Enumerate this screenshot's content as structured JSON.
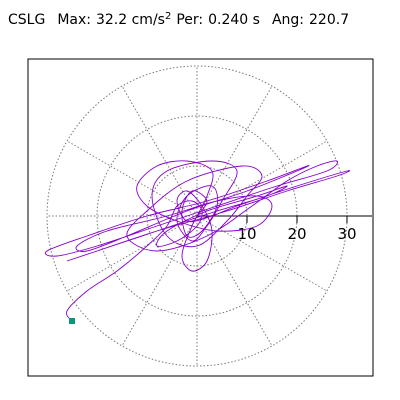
{
  "header": {
    "station": "CSLG",
    "max_label": "Max:",
    "max_value": "32.2 cm/s",
    "max_exponent": "2",
    "per_label": "Per:",
    "per_value": "0.240 s",
    "ang_label": "Ang:",
    "ang_value": "220.7"
  },
  "chart_data": {
    "type": "polar_orbit",
    "title": "",
    "max_amplitude": 32.2,
    "unit": "cm/s2",
    "period_s": 0.24,
    "angle_deg": 220.7,
    "radial_range": [
      0,
      35
    ],
    "radial_ticks": [
      10,
      20,
      30
    ],
    "radial_tick_labels": [
      "10",
      "20",
      "30"
    ],
    "grid": "dotted concentric rings with 30-degree spokes",
    "series": [
      {
        "color": "#8800cc",
        "end_marker_color": "#009977",
        "points": [
          [
            0,
            0
          ],
          [
            2,
            3
          ],
          [
            -1,
            5
          ],
          [
            -3,
            1
          ],
          [
            -2,
            -4
          ],
          [
            1,
            -3
          ],
          [
            4,
            2
          ],
          [
            3,
            6
          ],
          [
            -2,
            4
          ],
          [
            -4,
            -1
          ],
          [
            -1,
            -5
          ],
          [
            2,
            -2
          ],
          [
            5,
            3
          ],
          [
            8,
            9
          ],
          [
            3,
            11
          ],
          [
            -6,
            9
          ],
          [
            -9,
            4
          ],
          [
            -6,
            -4
          ],
          [
            0,
            -6
          ],
          [
            6,
            -1
          ],
          [
            10,
            4
          ],
          [
            13,
            8
          ],
          [
            9,
            10
          ],
          [
            -2,
            7
          ],
          [
            -10,
            1
          ],
          [
            -14,
            -4
          ],
          [
            -8,
            -7
          ],
          [
            2,
            -4
          ],
          [
            11,
            2
          ],
          [
            18,
            7
          ],
          [
            24,
            10
          ],
          [
            28,
            11
          ],
          [
            26,
            9
          ],
          [
            16,
            6
          ],
          [
            4,
            2
          ],
          [
            -8,
            -2
          ],
          [
            -20,
            -6
          ],
          [
            -28,
            -8
          ],
          [
            -30,
            -7
          ],
          [
            -22,
            -4
          ],
          [
            -10,
            0
          ],
          [
            2,
            3
          ],
          [
            14,
            7
          ],
          [
            22,
            10
          ],
          [
            20,
            9
          ],
          [
            10,
            5
          ],
          [
            -2,
            1
          ],
          [
            -14,
            -4
          ],
          [
            -22,
            -7
          ],
          [
            -24,
            -6
          ],
          [
            -18,
            -3
          ],
          [
            -6,
            0
          ],
          [
            4,
            3
          ],
          [
            12,
            4
          ],
          [
            15,
            2
          ],
          [
            12,
            -2
          ],
          [
            4,
            -3
          ],
          [
            -4,
            -1
          ],
          [
            -10,
            2
          ],
          [
            -12,
            6
          ],
          [
            -8,
            10
          ],
          [
            -2,
            11
          ],
          [
            3,
            9
          ],
          [
            2,
            4
          ],
          [
            -1,
            -2
          ],
          [
            -3,
            -8
          ],
          [
            -1,
            -11
          ],
          [
            2,
            -9
          ],
          [
            3,
            -3
          ],
          [
            1,
            2
          ],
          [
            -2,
            5
          ],
          [
            -4,
            3
          ],
          [
            -2,
            -1
          ],
          [
            3,
            0
          ],
          [
            8,
            2
          ],
          [
            20,
            6
          ],
          [
            30,
            9
          ],
          [
            28,
            8
          ],
          [
            18,
            5
          ],
          [
            6,
            1
          ],
          [
            -8,
            -3
          ],
          [
            -20,
            -7
          ],
          [
            -26,
            -9
          ],
          [
            -20,
            -7
          ],
          [
            -8,
            -3
          ],
          [
            4,
            1
          ],
          [
            14,
            4
          ],
          [
            18,
            6
          ],
          [
            12,
            4
          ],
          [
            2,
            1
          ],
          [
            -6,
            -3
          ],
          [
            -8,
            -6
          ],
          [
            -4,
            -5
          ],
          [
            0,
            -2
          ],
          [
            1,
            1
          ],
          [
            -1,
            3
          ],
          [
            -4,
            2
          ],
          [
            -6,
            -2
          ],
          [
            -10,
            -6
          ],
          [
            -16,
            -11
          ],
          [
            -22,
            -15
          ],
          [
            -26,
            -19
          ],
          [
            -25,
            -21
          ]
        ]
      }
    ]
  }
}
